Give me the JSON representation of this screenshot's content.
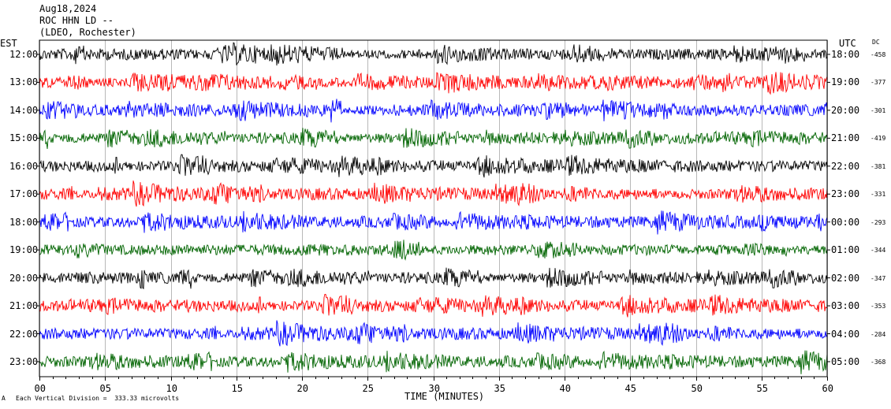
{
  "header": {
    "date": "Aug18,2024",
    "station": "ROC HHN LD --",
    "network": "(LDEO, Rochester)"
  },
  "left_axis_title": "EST",
  "right_axis_title": "UTC",
  "dc_title": "DC",
  "footer": {
    "xlabel": "TIME (MINUTES)",
    "scale_note": "Each Vertical Division =  333.33 microvolts",
    "corner_mark": "A"
  },
  "colors": {
    "black": "#000000",
    "red": "#ff0000",
    "blue": "#0000ff",
    "green": "#006400"
  },
  "chart_data": {
    "type": "line",
    "title": "Aug18,2024 ROC HHN LD -- (LDEO, Rochester)",
    "xlabel": "TIME (MINUTES)",
    "xlim": [
      0,
      60
    ],
    "x_ticks": [
      "00",
      "05",
      "10",
      "15",
      "20",
      "25",
      "30",
      "35",
      "40",
      "45",
      "50",
      "55",
      "60"
    ],
    "rows": [
      {
        "est": "12:00",
        "utc": "18:00",
        "dc": "-458",
        "color": "black"
      },
      {
        "est": "13:00",
        "utc": "19:00",
        "dc": "-377",
        "color": "red"
      },
      {
        "est": "14:00",
        "utc": "20:00",
        "dc": "-301",
        "color": "blue"
      },
      {
        "est": "15:00",
        "utc": "21:00",
        "dc": "-419",
        "color": "green"
      },
      {
        "est": "16:00",
        "utc": "22:00",
        "dc": "-381",
        "color": "black"
      },
      {
        "est": "17:00",
        "utc": "23:00",
        "dc": "-331",
        "color": "red"
      },
      {
        "est": "18:00",
        "utc": "00:00",
        "dc": "-293",
        "color": "blue"
      },
      {
        "est": "19:00",
        "utc": "01:00",
        "dc": "-344",
        "color": "green"
      },
      {
        "est": "20:00",
        "utc": "02:00",
        "dc": "-347",
        "color": "black"
      },
      {
        "est": "21:00",
        "utc": "03:00",
        "dc": "-353",
        "color": "red"
      },
      {
        "est": "22:00",
        "utc": "04:00",
        "dc": "-284",
        "color": "blue"
      },
      {
        "est": "23:00",
        "utc": "05:00",
        "dc": "-368",
        "color": "green"
      }
    ]
  }
}
